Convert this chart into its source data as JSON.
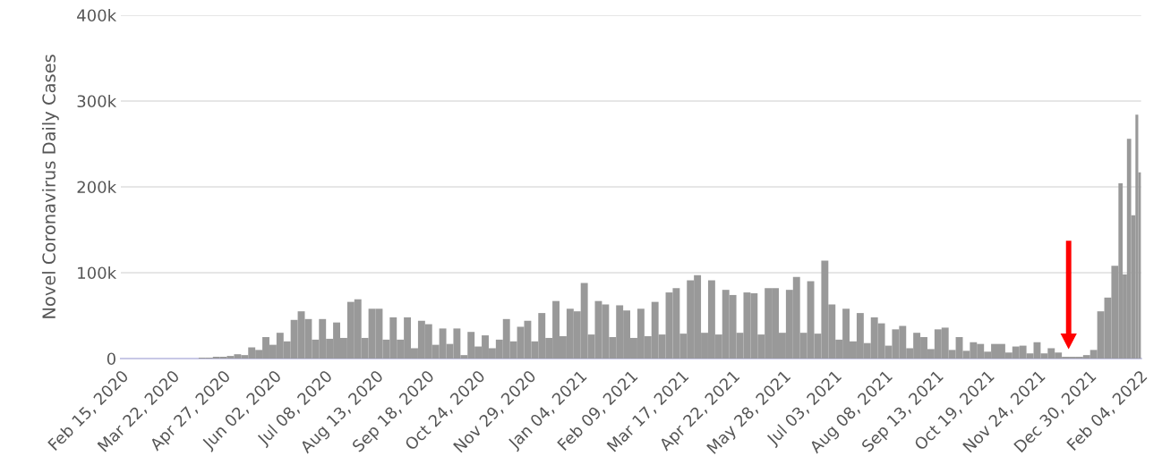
{
  "chart_data": {
    "type": "bar",
    "ylabel": "Novel Coronavirus Daily Cases",
    "color": "#999999",
    "x": [
      "2020-04-10",
      "2020-04-15",
      "2020-04-20",
      "2020-04-25",
      "2020-04-30",
      "2020-05-05",
      "2020-05-10",
      "2020-05-15",
      "2020-05-20",
      "2020-05-25",
      "2020-05-30",
      "2020-06-04",
      "2020-06-09",
      "2020-06-14",
      "2020-06-19",
      "2020-06-24",
      "2020-06-29",
      "2020-07-04",
      "2020-07-09",
      "2020-07-14",
      "2020-07-19",
      "2020-07-24",
      "2020-07-29",
      "2020-08-03",
      "2020-08-08",
      "2020-08-13",
      "2020-08-18",
      "2020-08-23",
      "2020-08-28",
      "2020-09-02",
      "2020-09-07",
      "2020-09-12",
      "2020-09-17",
      "2020-09-22",
      "2020-09-27",
      "2020-10-02",
      "2020-10-07",
      "2020-10-12",
      "2020-10-17",
      "2020-10-22",
      "2020-10-27",
      "2020-11-01",
      "2020-11-06",
      "2020-11-11",
      "2020-11-16",
      "2020-11-21",
      "2020-11-26",
      "2020-12-01",
      "2020-12-06",
      "2020-12-11",
      "2020-12-16",
      "2020-12-21",
      "2020-12-26",
      "2020-12-31",
      "2021-01-05",
      "2021-01-10",
      "2021-01-15",
      "2021-01-20",
      "2021-01-25",
      "2021-01-30",
      "2021-02-04",
      "2021-02-09",
      "2021-02-14",
      "2021-02-19",
      "2021-02-24",
      "2021-03-01",
      "2021-03-06",
      "2021-03-11",
      "2021-03-16",
      "2021-03-21",
      "2021-03-26",
      "2021-03-31",
      "2021-04-05",
      "2021-04-10",
      "2021-04-15",
      "2021-04-20",
      "2021-04-25",
      "2021-04-30",
      "2021-05-05",
      "2021-05-10",
      "2021-05-15",
      "2021-05-20",
      "2021-05-25",
      "2021-05-30",
      "2021-06-04",
      "2021-06-09",
      "2021-06-14",
      "2021-06-19",
      "2021-06-24",
      "2021-06-29",
      "2021-07-04",
      "2021-07-09",
      "2021-07-14",
      "2021-07-19",
      "2021-07-24",
      "2021-07-29",
      "2021-08-03",
      "2021-08-08",
      "2021-08-13",
      "2021-08-18",
      "2021-08-23",
      "2021-08-28",
      "2021-09-02",
      "2021-09-07",
      "2021-09-12",
      "2021-09-17",
      "2021-09-22",
      "2021-09-27",
      "2021-10-02",
      "2021-10-07",
      "2021-10-12",
      "2021-10-17",
      "2021-10-22",
      "2021-10-27",
      "2021-11-01",
      "2021-11-06",
      "2021-11-11",
      "2021-11-16",
      "2021-11-21",
      "2021-11-26",
      "2021-12-01",
      "2021-12-06",
      "2021-12-11",
      "2021-12-16",
      "2021-12-21",
      "2021-12-26",
      "2021-12-31",
      "2022-01-05",
      "2022-01-10",
      "2022-01-15",
      "2022-01-20",
      "2022-01-23",
      "2022-01-26",
      "2022-01-29",
      "2022-02-01",
      "2022-02-03"
    ],
    "values": [
      1,
      1,
      2,
      2,
      3,
      5,
      4,
      13,
      10,
      25,
      16,
      30,
      20,
      45,
      55,
      46,
      22,
      46,
      23,
      42,
      24,
      66,
      69,
      24,
      58,
      58,
      22,
      48,
      22,
      48,
      12,
      44,
      40,
      16,
      35,
      17,
      35,
      4,
      31,
      14,
      27,
      12,
      22,
      46,
      20,
      37,
      44,
      20,
      53,
      24,
      67,
      26,
      58,
      55,
      88,
      28,
      67,
      63,
      25,
      62,
      56,
      24,
      58,
      26,
      66,
      28,
      77,
      82,
      29,
      91,
      97,
      30,
      91,
      28,
      80,
      74,
      30,
      77,
      76,
      28,
      82,
      82,
      30,
      80,
      95,
      30,
      90,
      29,
      114,
      63,
      22,
      58,
      20,
      53,
      18,
      48,
      41,
      15,
      34,
      38,
      12,
      30,
      25,
      11,
      34,
      36,
      10,
      25,
      9,
      19,
      17,
      8,
      17,
      17,
      7,
      14,
      15,
      6,
      19,
      6,
      12,
      7,
      2,
      2,
      2,
      4,
      10,
      55,
      71,
      108,
      204,
      98,
      256,
      167,
      284,
      217
    ],
    "xlim": [
      "2020-02-15",
      "2022-02-05"
    ],
    "xticks": [
      {
        "value": "2020-02-15",
        "label": "Feb 15, 2020"
      },
      {
        "value": "2020-03-22",
        "label": "Mar 22, 2020"
      },
      {
        "value": "2020-04-27",
        "label": "Apr 27, 2020"
      },
      {
        "value": "2020-06-02",
        "label": "Jun 02, 2020"
      },
      {
        "value": "2020-07-08",
        "label": "Jul 08, 2020"
      },
      {
        "value": "2020-08-13",
        "label": "Aug 13, 2020"
      },
      {
        "value": "2020-09-18",
        "label": "Sep 18, 2020"
      },
      {
        "value": "2020-10-24",
        "label": "Oct 24, 2020"
      },
      {
        "value": "2020-11-29",
        "label": "Nov 29, 2020"
      },
      {
        "value": "2021-01-04",
        "label": "Jan 04, 2021"
      },
      {
        "value": "2021-02-09",
        "label": "Feb 09, 2021"
      },
      {
        "value": "2021-03-17",
        "label": "Mar 17, 2021"
      },
      {
        "value": "2021-04-22",
        "label": "Apr 22, 2021"
      },
      {
        "value": "2021-05-28",
        "label": "May 28, 2021"
      },
      {
        "value": "2021-07-03",
        "label": "Jul 03, 2021"
      },
      {
        "value": "2021-08-08",
        "label": "Aug 08, 2021"
      },
      {
        "value": "2021-09-13",
        "label": "Sep 13, 2021"
      },
      {
        "value": "2021-10-19",
        "label": "Oct 19, 2021"
      },
      {
        "value": "2021-11-24",
        "label": "Nov 24, 2021"
      },
      {
        "value": "2021-12-30",
        "label": "Dec 30, 2021"
      },
      {
        "value": "2022-02-04",
        "label": "Feb 04, 2022"
      }
    ],
    "ylim": [
      0,
      400
    ],
    "yticks": [
      0,
      {
        "value": 100,
        "label": "100k"
      },
      {
        "value": 200,
        "label": "200k"
      },
      {
        "value": 300,
        "label": "300k"
      },
      {
        "value": 400,
        "label": "400k"
      }
    ],
    "grid": "y"
  }
}
